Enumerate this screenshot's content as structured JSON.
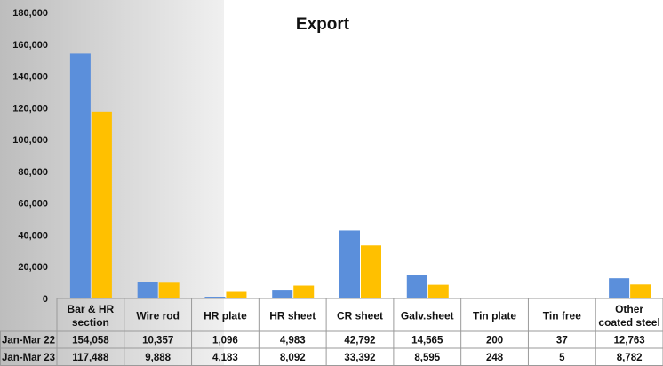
{
  "chart_data": {
    "type": "bar",
    "title": "Export",
    "categories": [
      "Bar & HR section",
      "Wire rod",
      "HR plate",
      "HR sheet",
      "CR sheet",
      "Galv.sheet",
      "Tin plate",
      "Tin free",
      "Other coated steel"
    ],
    "category_lines": [
      [
        "Bar & HR",
        "section"
      ],
      [
        "Wire rod"
      ],
      [
        "HR plate"
      ],
      [
        "HR sheet"
      ],
      [
        "CR sheet"
      ],
      [
        "Galv.sheet"
      ],
      [
        "Tin plate"
      ],
      [
        "Tin free"
      ],
      [
        "Other",
        "coated steel"
      ]
    ],
    "series": [
      {
        "name": "Jan-Mar 22",
        "color": "#5B8FDB",
        "values": [
          154058,
          10357,
          1096,
          4983,
          42792,
          14565,
          200,
          37,
          12763
        ],
        "labels": [
          "154,058",
          "10,357",
          "1,096",
          "4,983",
          "42,792",
          "14,565",
          "200",
          "37",
          "12,763"
        ]
      },
      {
        "name": "Jan-Mar 23",
        "color": "#FFC000",
        "values": [
          117488,
          9888,
          4183,
          8092,
          33392,
          8595,
          248,
          5,
          8782
        ],
        "labels": [
          "117,488",
          "9,888",
          "4,183",
          "8,092",
          "33,392",
          "8,595",
          "248",
          "5",
          "8,782"
        ]
      }
    ],
    "ylim": [
      0,
      180000
    ],
    "yticks": [
      0,
      20000,
      40000,
      60000,
      80000,
      100000,
      120000,
      140000,
      160000,
      180000
    ],
    "ytick_labels": [
      "0",
      "20,000",
      "40,000",
      "60,000",
      "80,000",
      "100,000",
      "120,000",
      "140,000",
      "160,000",
      "180,000"
    ],
    "grid": false,
    "legend": "data-table"
  }
}
